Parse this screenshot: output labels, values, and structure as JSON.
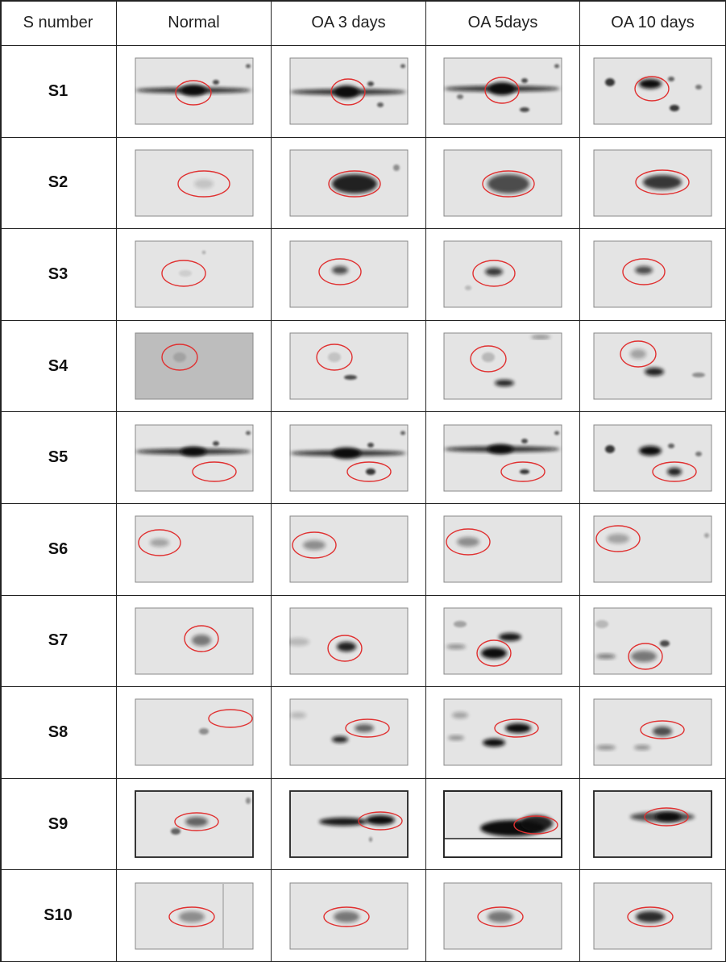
{
  "table": {
    "header": [
      "S number",
      "Normal",
      "OA 3 days",
      "OA 5days",
      "OA 10 days"
    ],
    "rows": [
      "S1",
      "S2",
      "S3",
      "S4",
      "S5",
      "S6",
      "S7",
      "S8",
      "S9",
      "S10"
    ]
  }
}
